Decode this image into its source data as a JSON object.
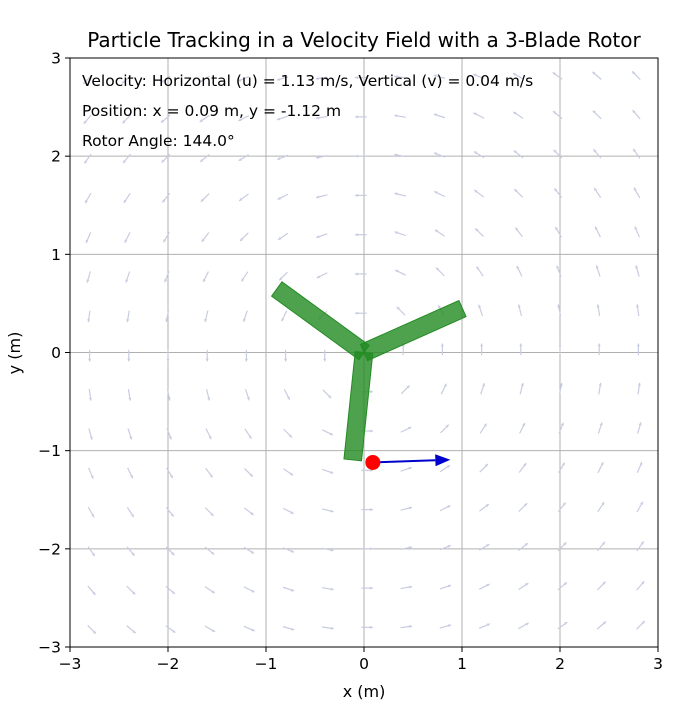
{
  "chart_data": {
    "type": "scatter",
    "title": "Particle Tracking in a Velocity Field with a 3-Blade Rotor",
    "xlabel": "x (m)",
    "ylabel": "y (m)",
    "xlim": [
      -3,
      3
    ],
    "ylim": [
      -3,
      3
    ],
    "xticks": [
      -3,
      -2,
      -1,
      0,
      1,
      2,
      3
    ],
    "yticks": [
      -3,
      -2,
      -1,
      0,
      1,
      2,
      3
    ],
    "xtick_labels": [
      "−3",
      "−2",
      "−1",
      "0",
      "1",
      "2",
      "3"
    ],
    "ytick_labels": [
      "−3",
      "−2",
      "−1",
      "0",
      "1",
      "2",
      "3"
    ],
    "grid": true,
    "annotations": [
      "Velocity: Horizontal (u) = 1.13 m/s, Vertical (v) = 0.04 m/s",
      "Position: x = 0.09 m, y = -1.12 m",
      "Rotor Angle: 144.0°"
    ],
    "velocity_field": {
      "kind": "vortex",
      "grid_x": [
        -2.8,
        -2.4,
        -2.0,
        -1.6,
        -1.2,
        -0.8,
        -0.4,
        0.0,
        0.4,
        0.8,
        1.2,
        1.6,
        2.0,
        2.4,
        2.8
      ],
      "grid_y": [
        -2.8,
        -2.4,
        -2.0,
        -1.6,
        -1.2,
        -0.8,
        -0.4,
        0.0,
        0.4,
        0.8,
        1.2,
        1.6,
        2.0,
        2.4,
        2.8
      ],
      "color": "#c8cce0"
    },
    "rotor": {
      "center": [
        0,
        0
      ],
      "angle_deg": 144.0,
      "blade_length": 1.1,
      "blade_angles_deg": [
        144.0,
        264.0,
        24.0
      ],
      "color": "#228b22"
    },
    "particle": {
      "x": 0.09,
      "y": -1.12,
      "color": "#ff0000"
    },
    "velocity_vector": {
      "u": 1.13,
      "v": 0.04,
      "color": "#0000cc"
    }
  }
}
